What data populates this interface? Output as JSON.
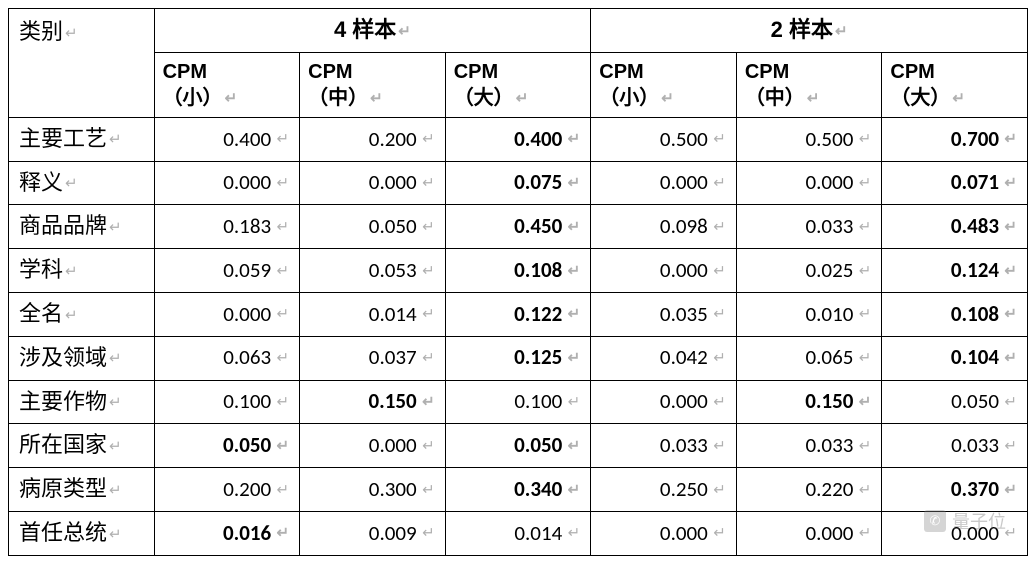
{
  "table": {
    "return_glyph": "↵",
    "category_header": "类别",
    "group_headers": [
      "4 样本",
      "2 样本"
    ],
    "sub_line1": "CPM",
    "sub_variants": [
      "（小）",
      "（中）",
      "（大）"
    ],
    "columns": [
      {
        "key": "g4_small",
        "group": 0,
        "variant": 0
      },
      {
        "key": "g4_med",
        "group": 0,
        "variant": 1
      },
      {
        "key": "g4_large",
        "group": 0,
        "variant": 2
      },
      {
        "key": "g2_small",
        "group": 1,
        "variant": 0
      },
      {
        "key": "g2_med",
        "group": 1,
        "variant": 1
      },
      {
        "key": "g2_large",
        "group": 1,
        "variant": 2
      }
    ],
    "rows": [
      {
        "label": "主要工艺",
        "values": [
          "0.400",
          "0.200",
          "0.400",
          "0.500",
          "0.500",
          "0.700"
        ],
        "bold": [
          false,
          false,
          true,
          false,
          false,
          true
        ]
      },
      {
        "label": "释义",
        "values": [
          "0.000",
          "0.000",
          "0.075",
          "0.000",
          "0.000",
          "0.071"
        ],
        "bold": [
          false,
          false,
          true,
          false,
          false,
          true
        ]
      },
      {
        "label": "商品品牌",
        "values": [
          "0.183",
          "0.050",
          "0.450",
          "0.098",
          "0.033",
          "0.483"
        ],
        "bold": [
          false,
          false,
          true,
          false,
          false,
          true
        ]
      },
      {
        "label": "学科",
        "values": [
          "0.059",
          "0.053",
          "0.108",
          "0.000",
          "0.025",
          "0.124"
        ],
        "bold": [
          false,
          false,
          true,
          false,
          false,
          true
        ]
      },
      {
        "label": "全名",
        "values": [
          "0.000",
          "0.014",
          "0.122",
          "0.035",
          "0.010",
          "0.108"
        ],
        "bold": [
          false,
          false,
          true,
          false,
          false,
          true
        ]
      },
      {
        "label": "涉及领域",
        "values": [
          "0.063",
          "0.037",
          "0.125",
          "0.042",
          "0.065",
          "0.104"
        ],
        "bold": [
          false,
          false,
          true,
          false,
          false,
          true
        ]
      },
      {
        "label": "主要作物",
        "values": [
          "0.100",
          "0.150",
          "0.100",
          "0.000",
          "0.150",
          "0.050"
        ],
        "bold": [
          false,
          true,
          false,
          false,
          true,
          false
        ]
      },
      {
        "label": "所在国家",
        "values": [
          "0.050",
          "0.000",
          "0.050",
          "0.033",
          "0.033",
          "0.033"
        ],
        "bold": [
          true,
          false,
          true,
          false,
          false,
          false
        ]
      },
      {
        "label": "病原类型",
        "values": [
          "0.200",
          "0.300",
          "0.340",
          "0.250",
          "0.220",
          "0.370"
        ],
        "bold": [
          false,
          false,
          true,
          false,
          false,
          true
        ]
      },
      {
        "label": "首任总统",
        "values": [
          "0.016",
          "0.009",
          "0.014",
          "0.000",
          "0.000",
          "0.000"
        ],
        "bold": [
          true,
          false,
          false,
          false,
          false,
          false
        ]
      }
    ],
    "styles": {
      "border_color": "#000000",
      "background_color": "#ffffff",
      "return_glyph_color": "#b0b0b0",
      "header_fontsize": 22,
      "cell_fontsize_label": 22,
      "cell_fontsize_value": 21
    }
  },
  "watermark": {
    "icon_glyph": "✆",
    "text": "量子位"
  }
}
